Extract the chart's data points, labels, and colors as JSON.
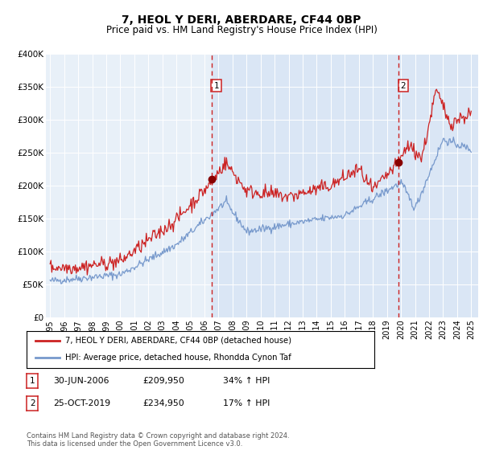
{
  "title": "7, HEOL Y DERI, ABERDARE, CF44 0BP",
  "subtitle": "Price paid vs. HM Land Registry's House Price Index (HPI)",
  "ylim": [
    0,
    400000
  ],
  "yticks": [
    0,
    50000,
    100000,
    150000,
    200000,
    250000,
    300000,
    350000,
    400000
  ],
  "ytick_labels": [
    "£0",
    "£50K",
    "£100K",
    "£150K",
    "£200K",
    "£250K",
    "£300K",
    "£350K",
    "£400K"
  ],
  "xlim_start": 1994.7,
  "xlim_end": 2025.5,
  "xticks": [
    1995,
    1996,
    1997,
    1998,
    1999,
    2000,
    2001,
    2002,
    2003,
    2004,
    2005,
    2006,
    2007,
    2008,
    2009,
    2010,
    2011,
    2012,
    2013,
    2014,
    2015,
    2016,
    2017,
    2018,
    2019,
    2020,
    2021,
    2022,
    2023,
    2024,
    2025
  ],
  "background_color": "#e8f0f8",
  "plot_bg_color": "#e8f0f8",
  "red_line_color": "#cc2222",
  "blue_line_color": "#7799cc",
  "vline_color": "#cc2222",
  "marker_color": "#880000",
  "span_color": "#dae6f5",
  "sale1_x": 2006.5,
  "sale1_y": 209950,
  "sale1_label": "1",
  "sale2_x": 2019.82,
  "sale2_y": 234950,
  "sale2_label": "2",
  "legend_line1": "7, HEOL Y DERI, ABERDARE, CF44 0BP (detached house)",
  "legend_line2": "HPI: Average price, detached house, Rhondda Cynon Taf",
  "table_row1_num": "1",
  "table_row1_date": "30-JUN-2006",
  "table_row1_price": "£209,950",
  "table_row1_hpi": "34% ↑ HPI",
  "table_row2_num": "2",
  "table_row2_date": "25-OCT-2019",
  "table_row2_price": "£234,950",
  "table_row2_hpi": "17% ↑ HPI",
  "footer": "Contains HM Land Registry data © Crown copyright and database right 2024.\nThis data is licensed under the Open Government Licence v3.0."
}
